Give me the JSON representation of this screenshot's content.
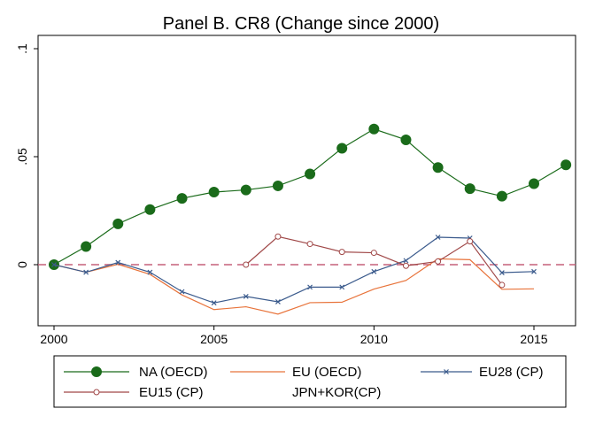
{
  "chart_data": {
    "type": "line",
    "title": "Panel B. CR8 (Change since 2000)",
    "xlabel": "",
    "ylabel": "",
    "xlim": [
      2000,
      2016
    ],
    "ylim": [
      -0.027,
      0.1
    ],
    "x_ticks": [
      2000,
      2005,
      2010,
      2015
    ],
    "x_tick_labels": [
      "2000",
      "2005",
      "2010",
      "2015"
    ],
    "y_ticks": [
      0,
      0.05,
      0.1
    ],
    "y_tick_labels": [
      "0",
      ".05",
      ".1"
    ],
    "reference_line": {
      "y": 0,
      "style": "dashed",
      "color": "#c5607a"
    },
    "grid": false,
    "legend_position": "bottom",
    "series": [
      {
        "name": "NA (OECD)",
        "color": "#1a6b1a",
        "marker": "filled-circle",
        "x": [
          2000,
          2001,
          2002,
          2003,
          2004,
          2005,
          2006,
          2007,
          2008,
          2009,
          2010,
          2011,
          2012,
          2013,
          2014,
          2015,
          2016
        ],
        "y": [
          0,
          0.0084,
          0.0189,
          0.0255,
          0.0307,
          0.0336,
          0.0346,
          0.0365,
          0.042,
          0.0539,
          0.0628,
          0.0578,
          0.045,
          0.0352,
          0.0317,
          0.0375,
          0.0462
        ]
      },
      {
        "name": "EU (OECD)",
        "color": "#e8733a",
        "marker": "none",
        "x": [
          2000,
          2001,
          2002,
          2003,
          2004,
          2005,
          2006,
          2007,
          2008,
          2009,
          2010,
          2011,
          2012,
          2013,
          2014,
          2015
        ],
        "y": [
          0,
          -0.0035,
          0.0002,
          -0.0045,
          -0.014,
          -0.0208,
          -0.0195,
          -0.0229,
          -0.0176,
          -0.0174,
          -0.0113,
          -0.0073,
          0.0027,
          0.0023,
          -0.0114,
          -0.0112
        ]
      },
      {
        "name": "EU28 (CP)",
        "color": "#3a5a8c",
        "marker": "x",
        "x": [
          2000,
          2001,
          2002,
          2003,
          2004,
          2005,
          2006,
          2007,
          2008,
          2009,
          2010,
          2011,
          2012,
          2013,
          2014,
          2015
        ],
        "y": [
          0,
          -0.0035,
          0.001,
          -0.0035,
          -0.0125,
          -0.0177,
          -0.0147,
          -0.0172,
          -0.0104,
          -0.0104,
          -0.0032,
          0.0019,
          0.0127,
          0.0123,
          -0.0037,
          -0.0032
        ]
      },
      {
        "name": "EU15 (CP)",
        "color": "#a04848",
        "marker": "hollow-circle",
        "x": [
          2006,
          2007,
          2008,
          2009,
          2010,
          2011,
          2012,
          2013,
          2014
        ],
        "y": [
          0,
          0.013,
          0.0096,
          0.0059,
          0.0055,
          -0.0005,
          0.0015,
          0.0108,
          -0.0094
        ]
      },
      {
        "name": "JPN+KOR(CP)",
        "color": "#000000",
        "marker": "none",
        "x": [],
        "y": []
      }
    ]
  }
}
